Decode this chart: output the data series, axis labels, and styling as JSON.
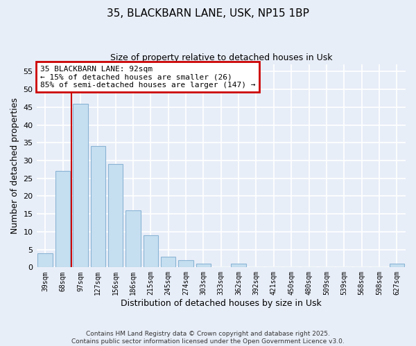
{
  "title_line1": "35, BLACKBARN LANE, USK, NP15 1BP",
  "title_line2": "Size of property relative to detached houses in Usk",
  "xlabel": "Distribution of detached houses by size in Usk",
  "ylabel": "Number of detached properties",
  "bar_labels": [
    "39sqm",
    "68sqm",
    "97sqm",
    "127sqm",
    "156sqm",
    "186sqm",
    "215sqm",
    "245sqm",
    "274sqm",
    "303sqm",
    "333sqm",
    "362sqm",
    "392sqm",
    "421sqm",
    "450sqm",
    "480sqm",
    "509sqm",
    "539sqm",
    "568sqm",
    "598sqm",
    "627sqm"
  ],
  "bar_values": [
    4,
    27,
    46,
    34,
    29,
    16,
    9,
    3,
    2,
    1,
    0,
    1,
    0,
    0,
    0,
    0,
    0,
    0,
    0,
    0,
    1
  ],
  "bar_color": "#c6dff0",
  "bar_edge_color": "#8ab4d4",
  "vline_color": "#cc0000",
  "annotation_title": "35 BLACKBARN LANE: 92sqm",
  "annotation_line1": "← 15% of detached houses are smaller (26)",
  "annotation_line2": "85% of semi-detached houses are larger (147) →",
  "annotation_box_color": "#ffffff",
  "annotation_box_edge_color": "#cc0000",
  "ylim": [
    0,
    57
  ],
  "yticks": [
    0,
    5,
    10,
    15,
    20,
    25,
    30,
    35,
    40,
    45,
    50,
    55
  ],
  "footer_line1": "Contains HM Land Registry data © Crown copyright and database right 2025.",
  "footer_line2": "Contains public sector information licensed under the Open Government Licence v3.0.",
  "bg_color": "#e8eef8",
  "grid_color": "#ffffff"
}
